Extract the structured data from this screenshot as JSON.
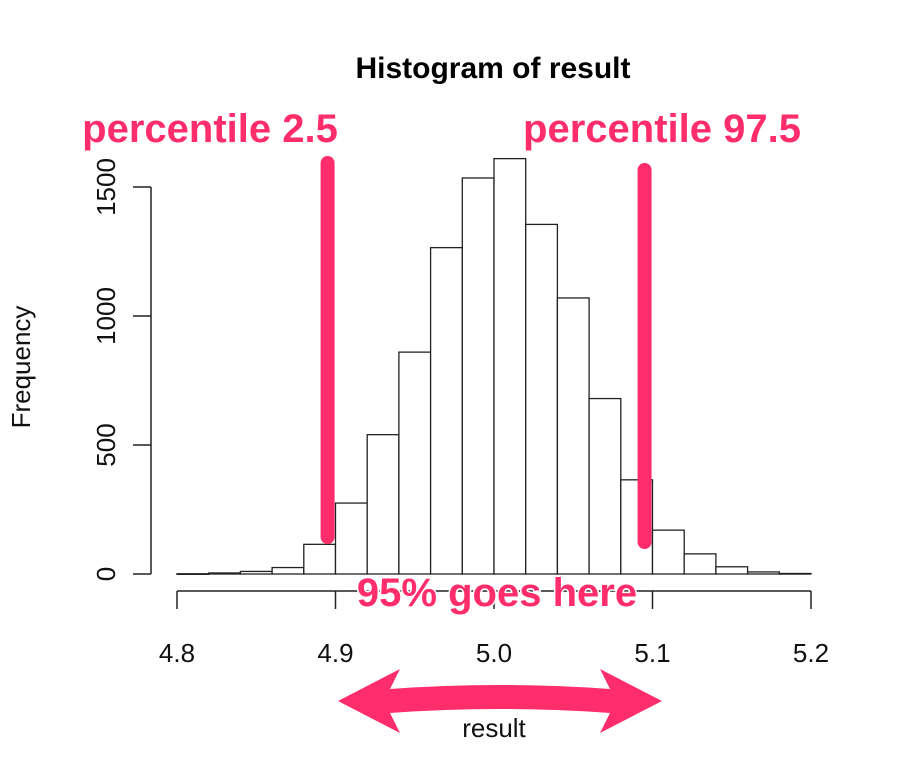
{
  "chart_data": {
    "type": "bar",
    "title": "Histogram of result",
    "xlabel": "result",
    "ylabel": "Frequency",
    "xlim": [
      4.8,
      5.2
    ],
    "ylim": [
      0,
      1600
    ],
    "x_ticks": [
      4.8,
      4.9,
      5.0,
      5.1,
      5.2
    ],
    "x_tick_labels": [
      "4.8",
      "4.9",
      "5.0",
      "5.1",
      "5.2"
    ],
    "y_ticks": [
      0,
      500,
      1000,
      1500
    ],
    "y_tick_labels": [
      "0",
      "500",
      "1000",
      "1500"
    ],
    "bin_width": 0.02,
    "bins": [
      {
        "start": 4.8,
        "end": 4.82,
        "value": 1
      },
      {
        "start": 4.82,
        "end": 4.84,
        "value": 4
      },
      {
        "start": 4.84,
        "end": 4.86,
        "value": 10
      },
      {
        "start": 4.86,
        "end": 4.88,
        "value": 25
      },
      {
        "start": 4.88,
        "end": 4.9,
        "value": 115
      },
      {
        "start": 4.9,
        "end": 4.92,
        "value": 275
      },
      {
        "start": 4.92,
        "end": 4.94,
        "value": 540
      },
      {
        "start": 4.94,
        "end": 4.96,
        "value": 860
      },
      {
        "start": 4.96,
        "end": 4.98,
        "value": 1265
      },
      {
        "start": 4.98,
        "end": 5.0,
        "value": 1535
      },
      {
        "start": 5.0,
        "end": 5.02,
        "value": 1610
      },
      {
        "start": 5.02,
        "end": 5.04,
        "value": 1355
      },
      {
        "start": 5.04,
        "end": 5.06,
        "value": 1070
      },
      {
        "start": 5.06,
        "end": 5.08,
        "value": 680
      },
      {
        "start": 5.08,
        "end": 5.1,
        "value": 365
      },
      {
        "start": 5.1,
        "end": 5.12,
        "value": 170
      },
      {
        "start": 5.12,
        "end": 5.14,
        "value": 78
      },
      {
        "start": 5.14,
        "end": 5.16,
        "value": 28
      },
      {
        "start": 5.16,
        "end": 5.18,
        "value": 8
      },
      {
        "start": 5.18,
        "end": 5.2,
        "value": 2
      }
    ],
    "annotations": {
      "lower_label": "percentile 2.5",
      "upper_label": "percentile 97.5",
      "range_label": "95% goes here",
      "lower_x": 4.895,
      "upper_x": 5.095,
      "accent_color": "#ff2d6b"
    }
  }
}
